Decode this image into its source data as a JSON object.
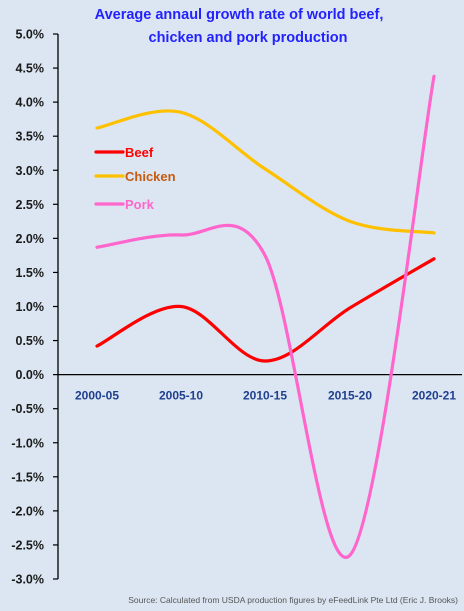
{
  "chart_data": {
    "type": "line",
    "title": "Average annaul growth rate of world beef, chicken and pork production",
    "title_lines": [
      "Average annaul growth rate of world beef,",
      "chicken and pork production"
    ],
    "categories": [
      "2000-05",
      "2005-10",
      "2010-15",
      "2015-20",
      "2020-21"
    ],
    "y_tick_labels": [
      "5.0%",
      "4.5%",
      "4.0%",
      "3.5%",
      "3.0%",
      "2.5%",
      "2.0%",
      "1.5%",
      "1.0%",
      "0.5%",
      "0.0%",
      "-0.5%",
      "-1.0%",
      "-1.5%",
      "-2.0%",
      "-2.5%",
      "-3.0%"
    ],
    "ylim": [
      -3.0,
      5.0
    ],
    "y_unit": "%",
    "grid": false,
    "legend_position": "left, inside plot",
    "series": [
      {
        "name": "Beef",
        "color": "#ff0000",
        "values": [
          0.42,
          1.0,
          0.2,
          0.98,
          1.7
        ]
      },
      {
        "name": "Chicken",
        "color": "#ffc000",
        "values": [
          3.62,
          3.85,
          3.02,
          2.25,
          2.08
        ]
      },
      {
        "name": "Pork",
        "color": "#ff66cc",
        "values": [
          1.87,
          2.05,
          1.75,
          -2.65,
          4.38
        ]
      }
    ],
    "legend_text_colors": {
      "Beef": "#ff0000",
      "Chicken": "#c55a11",
      "Pork": "#ff66cc"
    },
    "source": "Source: Calculated from USDA production figures by eFeedLink Pte Ltd (Eric J. Brooks)"
  }
}
